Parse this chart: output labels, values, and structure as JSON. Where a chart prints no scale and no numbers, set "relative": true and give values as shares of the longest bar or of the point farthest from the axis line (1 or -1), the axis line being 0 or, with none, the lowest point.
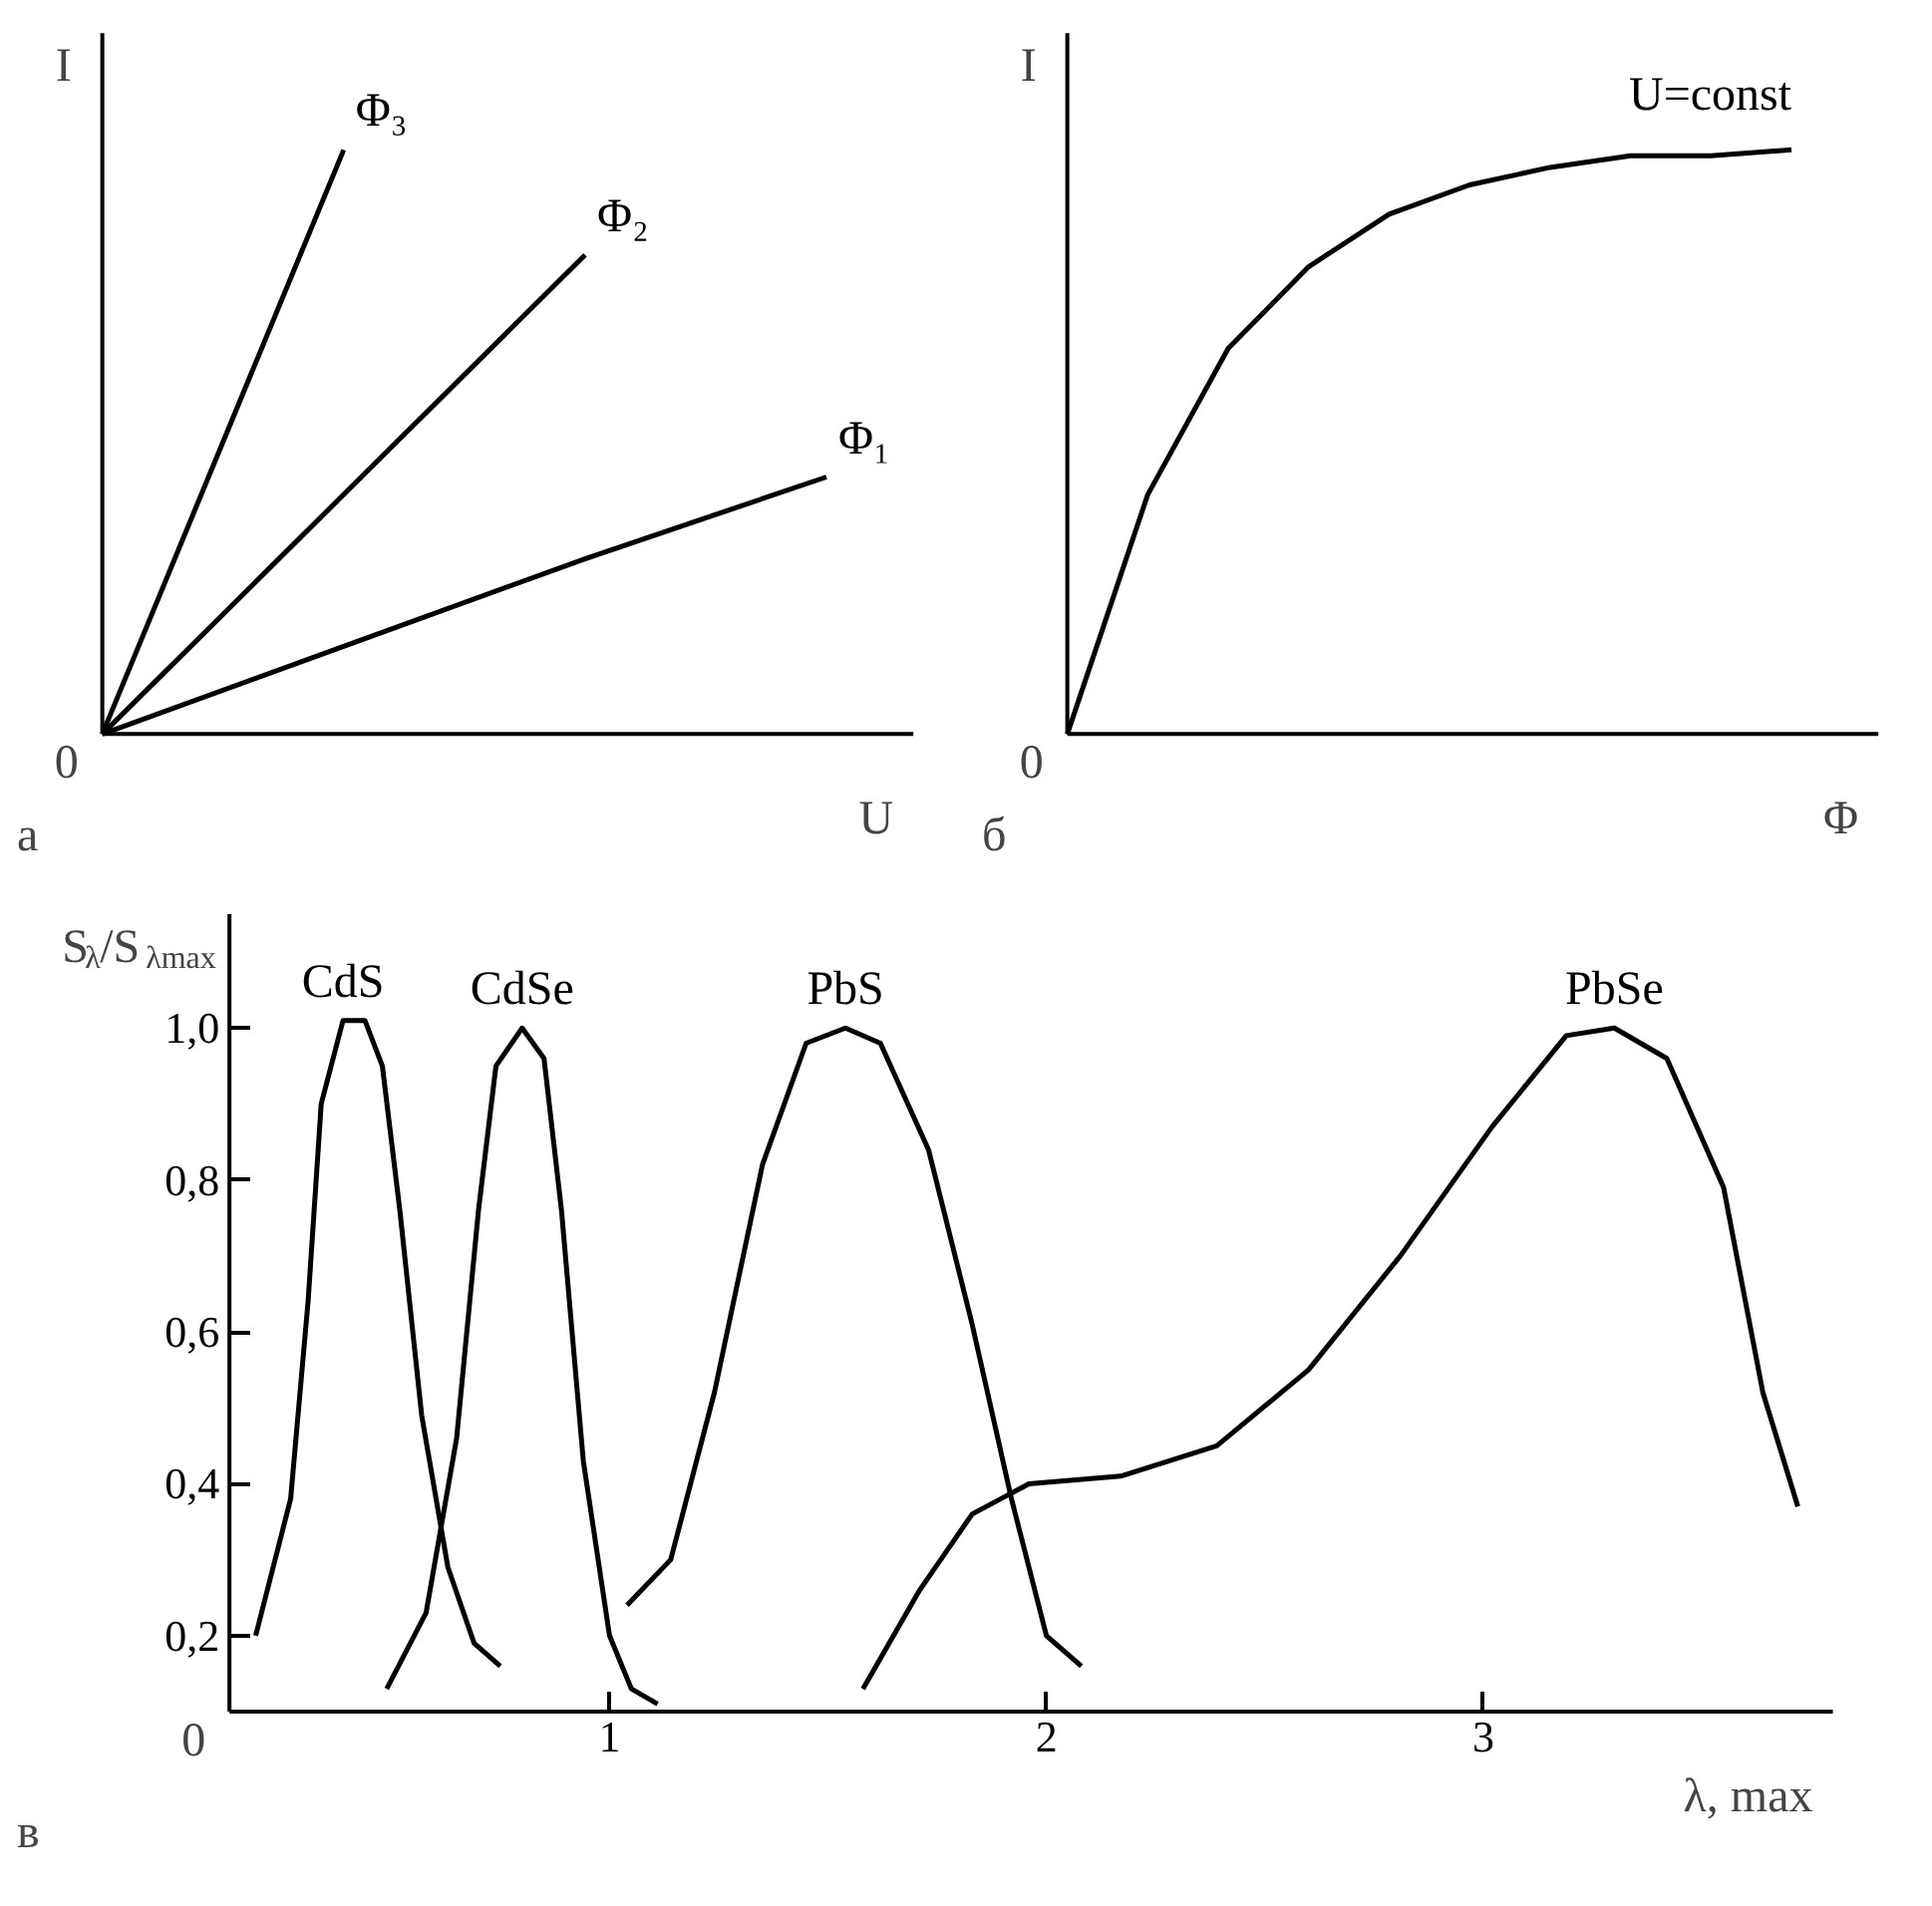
{
  "chart_data": [
    {
      "type": "line",
      "relative": true,
      "xlabel": "U",
      "ylabel": "I",
      "annotations": [
        "а",
        "0"
      ],
      "marker": "none",
      "line_style": "solid",
      "grid": false,
      "categories": [
        null,
        null,
        null,
        null
      ],
      "series": [
        {
          "name": "Φ₃",
          "color": "#000000",
          "values": [
            0,
            1,
            null,
            null
          ]
        },
        {
          "name": "Φ₂",
          "color": "#000000",
          "values": [
            0,
            0.41,
            0.82,
            null
          ]
        },
        {
          "name": "Φ₁",
          "color": "#000000",
          "values": [
            0,
            0.15,
            0.3,
            0.44
          ]
        }
      ]
    },
    {
      "type": "line",
      "relative": true,
      "xlabel": "Φ",
      "ylabel": "I",
      "annotations": [
        "б",
        "0"
      ],
      "marker": "none",
      "line_style": "solid",
      "grid": false,
      "categories": [
        null,
        null,
        null,
        null,
        null,
        null,
        null,
        null,
        null,
        null
      ],
      "series": [
        {
          "name": "U=const",
          "color": "#000000",
          "values": [
            0,
            0.41,
            0.66,
            0.8,
            0.89,
            0.94,
            0.97,
            0.99,
            0.99,
            1.0
          ]
        }
      ]
    },
    {
      "type": "line",
      "xlabel": "λ, max",
      "ylabel": "S$_{λ}$/S$_{λmax}$",
      "annotations": [
        "в",
        "0"
      ],
      "marker": "none",
      "line_style": "solid",
      "grid": false,
      "xlim": [
        0.13,
        3.8
      ],
      "ylim": [
        0.1,
        1.15
      ],
      "xticks": [
        1,
        2,
        3
      ],
      "yticks": [
        {
          "value": 0.2,
          "label": "0,2"
        },
        {
          "value": 0.4,
          "label": "0,4"
        },
        {
          "value": 0.6,
          "label": "0,6"
        },
        {
          "value": 0.8,
          "label": "0,8"
        },
        {
          "value": 1.0,
          "label": "1,0"
        }
      ],
      "series": [
        {
          "name": "CdS",
          "color": "#000000",
          "x": [
            0.19,
            0.27,
            0.31,
            0.34,
            0.39,
            0.44,
            0.48,
            0.52,
            0.57,
            0.63,
            0.69,
            0.75
          ],
          "values": [
            0.2,
            0.38,
            0.64,
            0.9,
            1.01,
            1.01,
            0.95,
            0.76,
            0.49,
            0.29,
            0.19,
            0.16
          ]
        },
        {
          "name": "CdSe",
          "color": "#000000",
          "x": [
            0.49,
            0.58,
            0.65,
            0.7,
            0.74,
            0.8,
            0.85,
            0.89,
            0.94,
            1.0,
            1.05,
            1.11
          ],
          "values": [
            0.13,
            0.23,
            0.46,
            0.76,
            0.95,
            1.0,
            0.96,
            0.76,
            0.43,
            0.2,
            0.13,
            0.11
          ]
        },
        {
          "name": "PbS",
          "color": "#000000",
          "x": [
            1.04,
            1.14,
            1.24,
            1.35,
            1.45,
            1.54,
            1.62,
            1.73,
            1.83,
            1.92,
            2.0,
            2.08
          ],
          "values": [
            0.24,
            0.3,
            0.52,
            0.82,
            0.98,
            1.0,
            0.98,
            0.84,
            0.61,
            0.38,
            0.2,
            0.16
          ]
        },
        {
          "name": "PbSe",
          "color": "#000000",
          "x": [
            1.58,
            1.71,
            1.83,
            1.96,
            2.17,
            2.39,
            2.6,
            2.81,
            3.02,
            3.19,
            3.3,
            3.42,
            3.55,
            3.64,
            3.72
          ],
          "values": [
            0.13,
            0.26,
            0.36,
            0.4,
            0.41,
            0.45,
            0.55,
            0.7,
            0.87,
            0.99,
            1.0,
            0.96,
            0.79,
            0.52,
            0.37
          ]
        }
      ]
    }
  ]
}
